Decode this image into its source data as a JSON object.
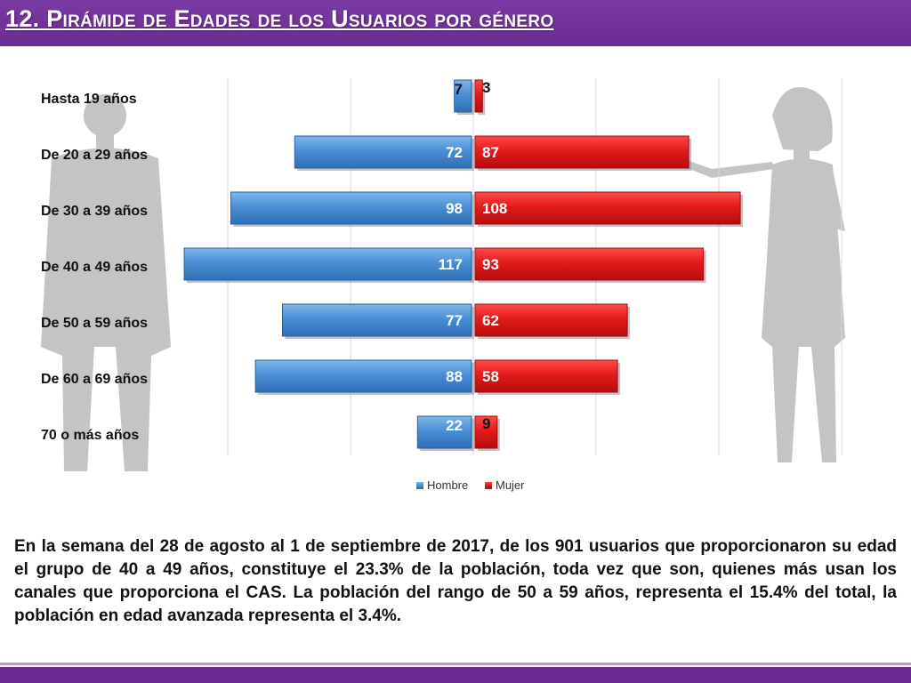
{
  "header": {
    "title": "12. Pirámide de Edades de los Usuarios por género"
  },
  "colors": {
    "title_bar": "#6a2c93",
    "hombre": "#4a8fd6",
    "mujer": "#e41a1a",
    "silhouette": "#bdbdbd"
  },
  "chart_data": {
    "type": "bar",
    "orientation": "horizontal-pyramid",
    "categories": [
      "Hasta 19 años",
      "De 20 a 29 años",
      "De 30 a 39 años",
      "De 40 a 49 años",
      "De 50 a 59 años",
      "De 60 a 69 años",
      "70 o más años"
    ],
    "series": [
      {
        "name": "Hombre",
        "values": [
          7,
          72,
          98,
          117,
          77,
          88,
          22
        ]
      },
      {
        "name": "Mujer",
        "values": [
          3,
          87,
          108,
          93,
          62,
          58,
          9
        ]
      }
    ],
    "xlim": [
      -120,
      150
    ],
    "grid": true,
    "legend": "bottom"
  },
  "body_text": "En la semana del 28 de agosto al 1 de septiembre de 2017, de los 901 usuarios  que proporcionaron su edad el grupo de 40 a 49 años, constituye el 23.3% de la población, toda vez que son, quienes más usan los canales que proporciona el CAS. La población del rango de 50 a 59 años, representa el 15.4% del total, la población en edad avanzada representa el 3.4%."
}
